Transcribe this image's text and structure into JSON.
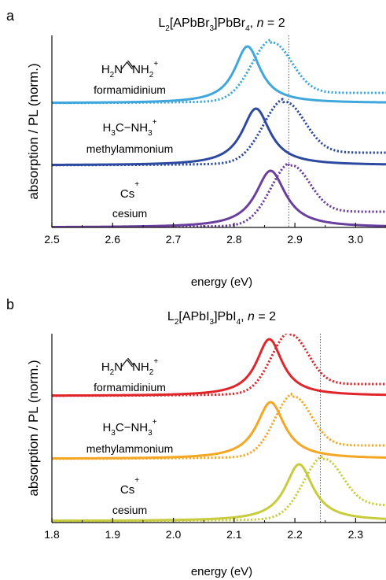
{
  "chart_data": [
    {
      "type": "line",
      "panel": "a",
      "title_parts": [
        {
          "t": "L",
          "s": ""
        },
        {
          "t": "2",
          "s": "sub"
        },
        {
          "t": "[APbBr",
          "s": ""
        },
        {
          "t": "3",
          "s": "sub"
        },
        {
          "t": "]PbBr",
          "s": ""
        },
        {
          "t": "4",
          "s": "sub"
        },
        {
          "t": ", ",
          "s": ""
        },
        {
          "t": "n",
          "s": "it"
        },
        {
          "t": " = 2",
          "s": ""
        }
      ],
      "xlabel": "energy (eV)",
      "ylabel": "absorption / PL (norm.)",
      "xlim": [
        2.5,
        3.05
      ],
      "xticks": [
        "2.5",
        "2.6",
        "2.7",
        "2.8",
        "2.9",
        "3.0"
      ],
      "vline": 2.89,
      "series": [
        {
          "cation_parts": [
            {
              "t": "H",
              "s": ""
            },
            {
              "t": "2",
              "s": "sub"
            },
            {
              "t": "N",
              "s": ""
            },
            {
              "t": "    ",
              "s": "gap"
            },
            {
              "t": "NH",
              "s": ""
            },
            {
              "t": "2",
              "s": "sub"
            },
            {
              "t": "+",
              "s": "sup"
            }
          ],
          "cation_bond": "formamidinium-bond",
          "label": "formamidinium",
          "color": "#3fa7dc",
          "pl": {
            "peak": 2.822,
            "width": 0.026,
            "height": 0.72
          },
          "abs": {
            "peak": 2.86,
            "width": 0.033,
            "height": 0.7,
            "tail": 0.13
          },
          "baseline_offset": 0
        },
        {
          "cation_parts": [
            {
              "t": "H",
              "s": ""
            },
            {
              "t": "3",
              "s": "sub"
            },
            {
              "t": "C−NH",
              "s": ""
            },
            {
              "t": "3",
              "s": "sub"
            },
            {
              "t": "+",
              "s": "sup"
            }
          ],
          "label": "methylammonium",
          "color": "#2e4aa0",
          "pl": {
            "peak": 2.836,
            "width": 0.028,
            "height": 0.72
          },
          "abs": {
            "peak": 2.88,
            "width": 0.034,
            "height": 0.72,
            "tail": 0.16
          },
          "baseline_offset": 1
        },
        {
          "cation_parts": [
            {
              "t": "Cs",
              "s": ""
            },
            {
              "t": "+",
              "s": "sup"
            }
          ],
          "label": "cesium",
          "color": "#6b3f9e",
          "pl": {
            "peak": 2.86,
            "width": 0.03,
            "height": 0.72
          },
          "abs": {
            "peak": 2.89,
            "width": 0.032,
            "height": 0.68,
            "tail": 0.2
          },
          "baseline_offset": 2
        }
      ]
    },
    {
      "type": "line",
      "panel": "b",
      "title_parts": [
        {
          "t": "L",
          "s": ""
        },
        {
          "t": "2",
          "s": "sub"
        },
        {
          "t": "[APbI",
          "s": ""
        },
        {
          "t": "3",
          "s": "sub"
        },
        {
          "t": "]PbI",
          "s": ""
        },
        {
          "t": "4",
          "s": "sub"
        },
        {
          "t": ", ",
          "s": ""
        },
        {
          "t": "n",
          "s": "it"
        },
        {
          "t": " = 2",
          "s": ""
        }
      ],
      "xlabel": "energy (eV)",
      "ylabel": "absorption / PL (norm.)",
      "xlim": [
        1.8,
        2.35
      ],
      "xticks": [
        "1.8",
        "1.9",
        "2.0",
        "2.1",
        "2.2",
        "2.3"
      ],
      "vline": 2.242,
      "series": [
        {
          "cation_parts": [
            {
              "t": "H",
              "s": ""
            },
            {
              "t": "2",
              "s": "sub"
            },
            {
              "t": "N",
              "s": ""
            },
            {
              "t": "    ",
              "s": "gap"
            },
            {
              "t": "NH",
              "s": ""
            },
            {
              "t": "2",
              "s": "sub"
            },
            {
              "t": "+",
              "s": "sup"
            }
          ],
          "cation_bond": "formamidinium-bond",
          "label": "formamidinium",
          "color": "#e0262b",
          "pl": {
            "peak": 2.158,
            "width": 0.026,
            "height": 0.72
          },
          "abs": {
            "peak": 2.19,
            "width": 0.03,
            "height": 0.7,
            "tail": 0.15
          },
          "baseline_offset": 0
        },
        {
          "cation_parts": [
            {
              "t": "H",
              "s": ""
            },
            {
              "t": "3",
              "s": "sub"
            },
            {
              "t": "C−NH",
              "s": ""
            },
            {
              "t": "3",
              "s": "sub"
            },
            {
              "t": "+",
              "s": "sup"
            }
          ],
          "label": "methylammonium",
          "color": "#f5a623",
          "pl": {
            "peak": 2.16,
            "width": 0.028,
            "height": 0.72
          },
          "abs": {
            "peak": 2.195,
            "width": 0.03,
            "height": 0.7,
            "tail": 0.17
          },
          "baseline_offset": 1
        },
        {
          "cation_parts": [
            {
              "t": "Cs",
              "s": ""
            },
            {
              "t": "+",
              "s": "sup"
            }
          ],
          "label": "cesium",
          "color": "#c8cc3c",
          "pl": {
            "peak": 2.207,
            "width": 0.028,
            "height": 0.72
          },
          "abs": {
            "peak": 2.244,
            "width": 0.032,
            "height": 0.68,
            "tail": 0.2
          },
          "baseline_offset": 2
        }
      ]
    }
  ]
}
